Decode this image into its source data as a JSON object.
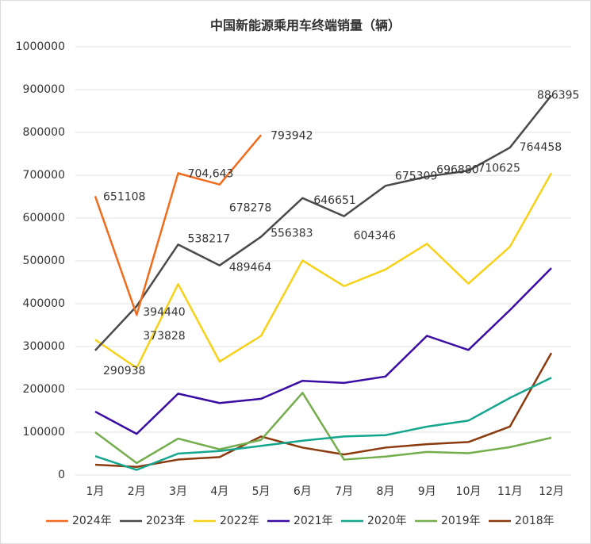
{
  "chart_data": {
    "type": "line",
    "title": "中国新能源乘用车终端销量（辆）",
    "categories": [
      "1月",
      "2月",
      "3月",
      "4月",
      "5月",
      "6月",
      "7月",
      "8月",
      "9月",
      "10月",
      "11月",
      "12月"
    ],
    "ylim": [
      0,
      1000000
    ],
    "yticks": [
      0,
      100000,
      200000,
      300000,
      400000,
      500000,
      600000,
      700000,
      800000,
      900000,
      1000000
    ],
    "grid": true,
    "legend": "bottom",
    "series": [
      {
        "name": "2024年",
        "color": "#f26b1d",
        "values": [
          651108,
          373828,
          704643,
          678278,
          793942,
          null,
          null,
          null,
          null,
          null,
          null,
          null
        ],
        "value_labels": [
          "651108",
          "373828",
          "704,643",
          "678278",
          "793942",
          null,
          null,
          null,
          null,
          null,
          null,
          null
        ]
      },
      {
        "name": "2023年",
        "color": "#4a4a4a",
        "values": [
          290938,
          394440,
          538217,
          489464,
          556383,
          646651,
          604346,
          675309,
          696880,
          710625,
          764458,
          886395
        ]
      },
      {
        "name": "2022年",
        "color": "#f7d117",
        "values": [
          316000,
          250000,
          446000,
          265000,
          325000,
          501000,
          441000,
          480000,
          540000,
          447000,
          533000,
          705000
        ]
      },
      {
        "name": "2021年",
        "color": "#3a0ca3",
        "values": [
          148000,
          96000,
          190000,
          168000,
          178000,
          220000,
          215000,
          230000,
          325000,
          292000,
          385000,
          483000
        ]
      },
      {
        "name": "2020年",
        "color": "#13a58e",
        "values": [
          44000,
          12000,
          50000,
          56000,
          68000,
          80000,
          90000,
          93000,
          113000,
          127000,
          180000,
          227000
        ]
      },
      {
        "name": "2019年",
        "color": "#74ad4c",
        "values": [
          100000,
          28000,
          85000,
          60000,
          82000,
          192000,
          36000,
          43000,
          54000,
          51000,
          65000,
          87000
        ]
      },
      {
        "name": "2018年",
        "color": "#8b3a0e",
        "values": [
          24000,
          19000,
          36000,
          42000,
          90000,
          64000,
          48000,
          64000,
          72000,
          77000,
          113000,
          285000
        ]
      }
    ]
  }
}
